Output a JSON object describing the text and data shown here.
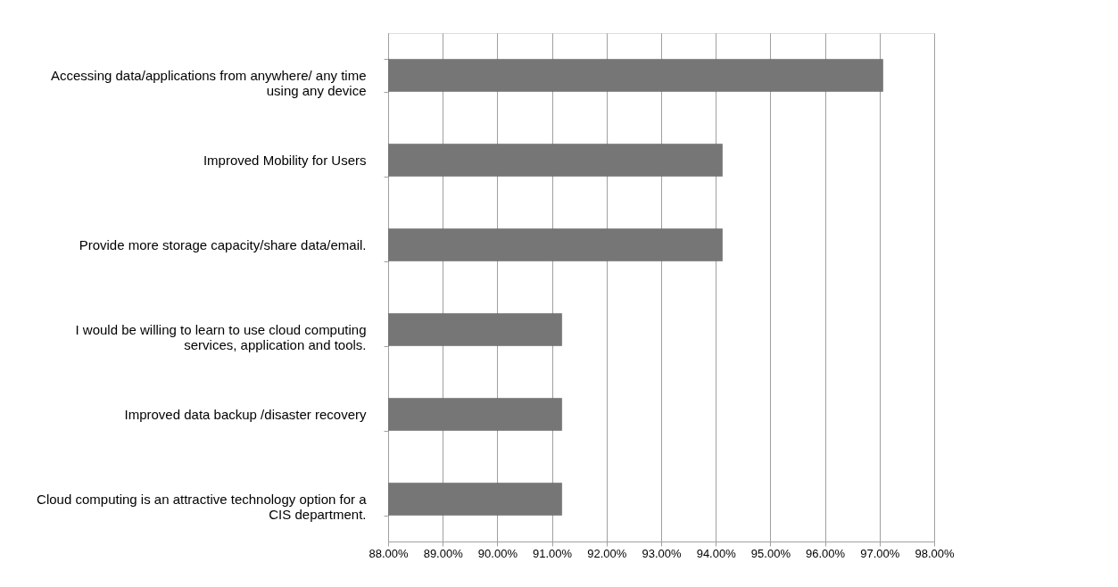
{
  "chart_data": {
    "type": "bar",
    "orientation": "horizontal",
    "categories": [
      "Accessing data/applications from anywhere/ any time using any device",
      "Improved Mobility for Users",
      "Provide more storage capacity/share data/email.",
      "I would be willing to learn to use cloud computing services, application and tools.",
      "Improved data backup /disaster recovery",
      "Cloud computing is an attractive technology option for a CIS department."
    ],
    "values": [
      97.06,
      94.12,
      94.12,
      91.18,
      91.18,
      91.18
    ],
    "color": "#767676",
    "xlim": [
      88,
      98
    ],
    "xticks": [
      {
        "value": 88,
        "label": "88.00%"
      },
      {
        "value": 89,
        "label": "89.00%"
      },
      {
        "value": 90,
        "label": "90.00%"
      },
      {
        "value": 91,
        "label": "91.00%"
      },
      {
        "value": 92,
        "label": "92.00%"
      },
      {
        "value": 93,
        "label": "93.00%"
      },
      {
        "value": 94,
        "label": "94.00%"
      },
      {
        "value": 95,
        "label": "95.00%"
      },
      {
        "value": 96,
        "label": "96.00%"
      },
      {
        "value": 97,
        "label": "97.00%"
      },
      {
        "value": 98,
        "label": "98.00%"
      }
    ],
    "grid": "x"
  }
}
